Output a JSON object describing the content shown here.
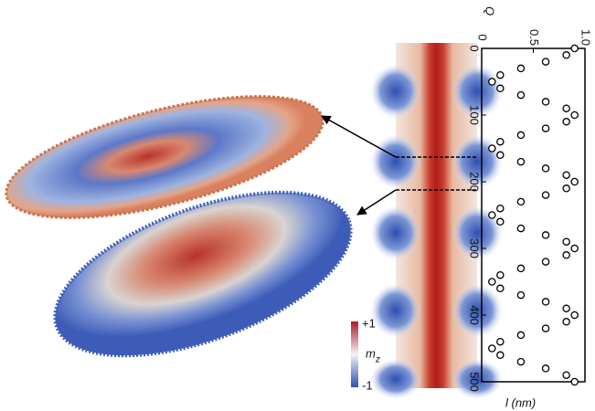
{
  "chart_data": {
    "type": "scatter",
    "x_label": "Q",
    "y_label": "l (nm)",
    "colorbar": {
      "max_label": "+1",
      "min_label": "-1",
      "label": "m",
      "label_subscript": "z"
    },
    "x": [
      0.9,
      0.82,
      0.62,
      0.38,
      0.18,
      0.1,
      0.18,
      0.38,
      0.62,
      0.82,
      0.9,
      0.82,
      0.62,
      0.38,
      0.18,
      0.1,
      0.18,
      0.38,
      0.62,
      0.82,
      0.9,
      0.82,
      0.62,
      0.38,
      0.18,
      0.1,
      0.18,
      0.38,
      0.62,
      0.82,
      0.9,
      0.82,
      0.62,
      0.38,
      0.18,
      0.1,
      0.18,
      0.38,
      0.62,
      0.82,
      0.9,
      0.82,
      0.62,
      0.38,
      0.18,
      0.1,
      0.18,
      0.38,
      0.62,
      0.82,
      0.9
    ],
    "y": [
      0,
      10,
      20,
      30,
      40,
      50,
      60,
      70,
      80,
      90,
      100,
      110,
      120,
      130,
      140,
      150,
      160,
      170,
      180,
      190,
      200,
      210,
      220,
      230,
      240,
      250,
      260,
      270,
      280,
      290,
      300,
      310,
      320,
      330,
      340,
      350,
      360,
      370,
      380,
      390,
      400,
      410,
      420,
      430,
      440,
      450,
      460,
      470,
      480,
      490,
      500
    ],
    "xlim": [
      0,
      1
    ],
    "xticks": [
      0,
      0.5,
      {
        "value": 1,
        "label": "1.0"
      }
    ],
    "ylim": [
      0,
      500
    ],
    "yticks": [
      0,
      100,
      200,
      300,
      400,
      500
    ],
    "y_inverted": true,
    "marker_color": "#000000"
  }
}
